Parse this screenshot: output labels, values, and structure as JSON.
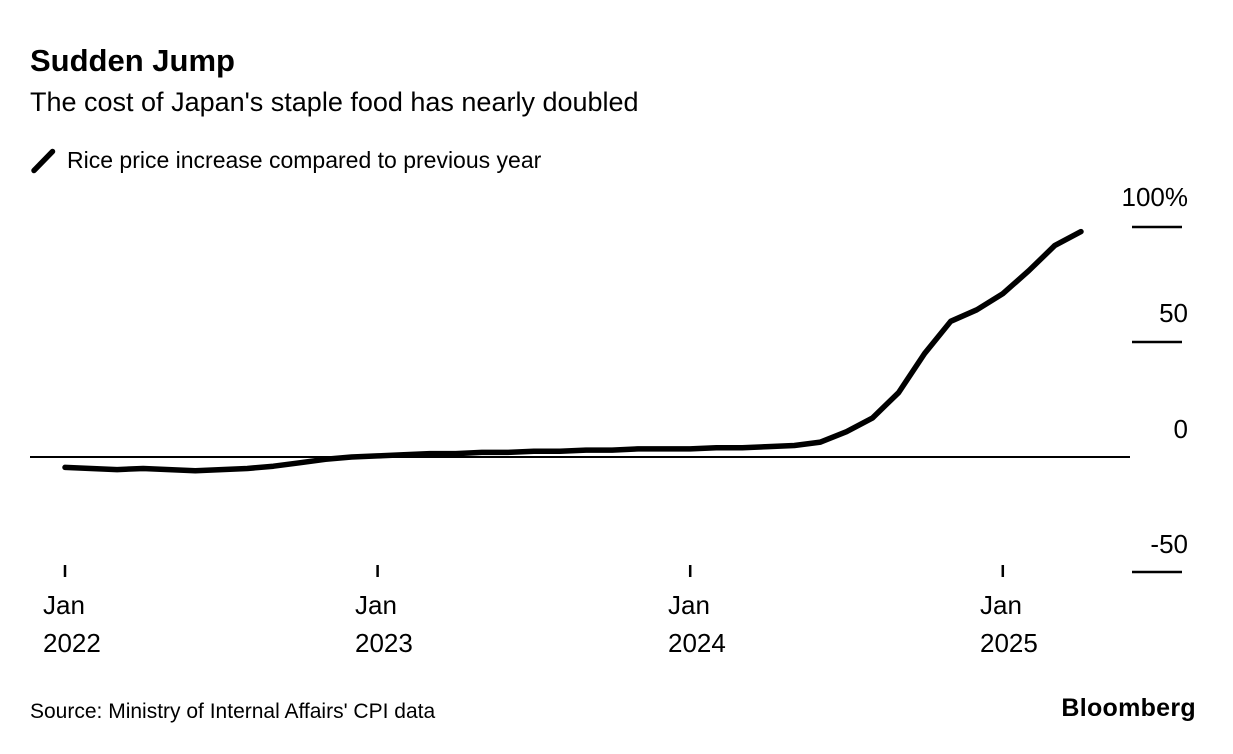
{
  "header": {
    "title": "Sudden Jump",
    "subtitle": "The cost of Japan's staple food has nearly doubled"
  },
  "legend": {
    "label": "Rice price increase compared to previous year"
  },
  "chart_data": {
    "type": "line",
    "title": "Sudden Jump",
    "subtitle": "The cost of Japan's staple food has nearly doubled",
    "ylabel": "Rice price increase compared to previous year (%)",
    "xlabel": "",
    "units": "percent year-over-year",
    "line_color": "#000000",
    "ylim": [
      -60,
      110
    ],
    "grid": "off",
    "zero_baseline": true,
    "legend_position": "top-left",
    "y_ticks": [
      {
        "label": "100%",
        "value": 100
      },
      {
        "label": "50",
        "value": 50
      },
      {
        "label": "0",
        "value": 0
      },
      {
        "label": "-50",
        "value": -50
      }
    ],
    "x_ticks": [
      {
        "month": "Jan",
        "year": "2022",
        "month_index": 0
      },
      {
        "month": "Jan",
        "year": "2023",
        "month_index": 12
      },
      {
        "month": "Jan",
        "year": "2024",
        "month_index": 24
      },
      {
        "month": "Jan",
        "year": "2025",
        "month_index": 36
      }
    ],
    "x": [
      "Jan 2022",
      "Feb 2022",
      "Mar 2022",
      "Apr 2022",
      "May 2022",
      "Jun 2022",
      "Jul 2022",
      "Aug 2022",
      "Sep 2022",
      "Oct 2022",
      "Nov 2022",
      "Dec 2022",
      "Jan 2023",
      "Feb 2023",
      "Mar 2023",
      "Apr 2023",
      "May 2023",
      "Jun 2023",
      "Jul 2023",
      "Aug 2023",
      "Sep 2023",
      "Oct 2023",
      "Nov 2023",
      "Dec 2023",
      "Jan 2024",
      "Feb 2024",
      "Mar 2024",
      "Apr 2024",
      "May 2024",
      "Jun 2024",
      "Jul 2024",
      "Aug 2024",
      "Sep 2024",
      "Oct 2024",
      "Nov 2024",
      "Dec 2024",
      "Jan 2025",
      "Feb 2025",
      "Mar 2025",
      "Apr 2025"
    ],
    "series": [
      {
        "name": "Rice price increase compared to previous year",
        "values": [
          -4.5,
          -5,
          -5.5,
          -5,
          -5.5,
          -6,
          -5.5,
          -5,
          -4,
          -2.5,
          -1,
          0,
          0.5,
          1,
          1.5,
          1.5,
          2,
          2,
          2.5,
          2.5,
          3,
          3,
          3.5,
          3.5,
          3.5,
          4,
          4,
          4.5,
          5,
          6.5,
          11,
          17,
          28,
          45,
          59,
          64,
          71,
          81,
          92,
          98
        ]
      }
    ]
  },
  "footer": {
    "source": "Source: Ministry of Internal Affairs' CPI data",
    "brand": "Bloomberg"
  }
}
